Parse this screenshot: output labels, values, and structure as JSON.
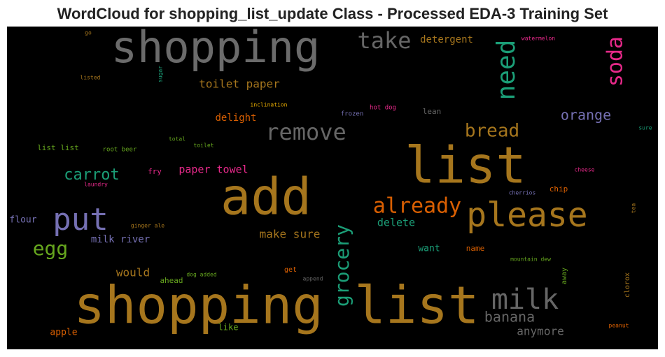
{
  "chart_data": {
    "type": "wordcloud",
    "title": "WordCloud for shopping_list_update Class - Processed EDA-3 Training Set",
    "background": "#000000",
    "words": [
      {
        "text": "shopping",
        "color": "#6b6b6b"
      },
      {
        "text": "list",
        "color": "#a6761d"
      },
      {
        "text": "add",
        "color": "#a6761d"
      },
      {
        "text": "shopping list",
        "color": "#a6761d"
      },
      {
        "text": "please",
        "color": "#a6761d"
      },
      {
        "text": "put",
        "color": "#7570b3"
      },
      {
        "text": "milk",
        "color": "#666666"
      },
      {
        "text": "remove",
        "color": "#666666"
      },
      {
        "text": "take",
        "color": "#666666"
      },
      {
        "text": "need",
        "color": "#1b9e77"
      },
      {
        "text": "soda",
        "color": "#e7298a"
      },
      {
        "text": "grocery",
        "color": "#1b9e77"
      },
      {
        "text": "already",
        "color": "#d95f02"
      },
      {
        "text": "bread",
        "color": "#a6761d"
      },
      {
        "text": "orange",
        "color": "#7570b3"
      },
      {
        "text": "carrot",
        "color": "#1b9e77"
      },
      {
        "text": "egg",
        "color": "#66a61e"
      },
      {
        "text": "banana",
        "color": "#666666"
      },
      {
        "text": "anymore",
        "color": "#666666"
      },
      {
        "text": "toilet paper",
        "color": "#a6761d"
      },
      {
        "text": "detergent",
        "color": "#a6761d"
      },
      {
        "text": "delight",
        "color": "#d95f02"
      },
      {
        "text": "paper towel",
        "color": "#e7298a"
      },
      {
        "text": "make sure",
        "color": "#a6761d"
      },
      {
        "text": "delete",
        "color": "#1b9e77"
      },
      {
        "text": "milk river",
        "color": "#7570b3"
      },
      {
        "text": "would",
        "color": "#a6761d"
      },
      {
        "text": "flour",
        "color": "#7570b3"
      },
      {
        "text": "want",
        "color": "#1b9e77"
      },
      {
        "text": "name",
        "color": "#d95f02"
      },
      {
        "text": "chip",
        "color": "#d95f02"
      },
      {
        "text": "apple",
        "color": "#d95f02"
      },
      {
        "text": "like",
        "color": "#66a61e"
      },
      {
        "text": "ahead",
        "color": "#66a61e"
      },
      {
        "text": "get",
        "color": "#d95f02"
      },
      {
        "text": "append",
        "color": "#666666"
      },
      {
        "text": "dog added",
        "color": "#66a61e"
      },
      {
        "text": "mountain dew",
        "color": "#66a61e"
      },
      {
        "text": "away",
        "color": "#66a61e"
      },
      {
        "text": "clorox",
        "color": "#a6761d"
      },
      {
        "text": "peanut",
        "color": "#d95f02"
      },
      {
        "text": "tea",
        "color": "#a6761d"
      },
      {
        "text": "cheese",
        "color": "#e7298a"
      },
      {
        "text": "cherrios",
        "color": "#7570b3"
      },
      {
        "text": "sure",
        "color": "#1b9e77"
      },
      {
        "text": "lean",
        "color": "#666666"
      },
      {
        "text": "hot dog",
        "color": "#e7298a"
      },
      {
        "text": "frozen",
        "color": "#7570b3"
      },
      {
        "text": "inclination",
        "color": "#e6ab02"
      },
      {
        "text": "total",
        "color": "#66a61e"
      },
      {
        "text": "toilet",
        "color": "#66a61e"
      },
      {
        "text": "root beer",
        "color": "#66a61e"
      },
      {
        "text": "list list",
        "color": "#66a61e"
      },
      {
        "text": "fry",
        "color": "#e7298a"
      },
      {
        "text": "laundry",
        "color": "#e7298a"
      },
      {
        "text": "ginger ale",
        "color": "#a6761d"
      },
      {
        "text": "watermelon",
        "color": "#e7298a"
      },
      {
        "text": "go",
        "color": "#a6761d"
      },
      {
        "text": "listed",
        "color": "#a6761d"
      },
      {
        "text": "sugar",
        "color": "#1b9e77"
      }
    ]
  }
}
